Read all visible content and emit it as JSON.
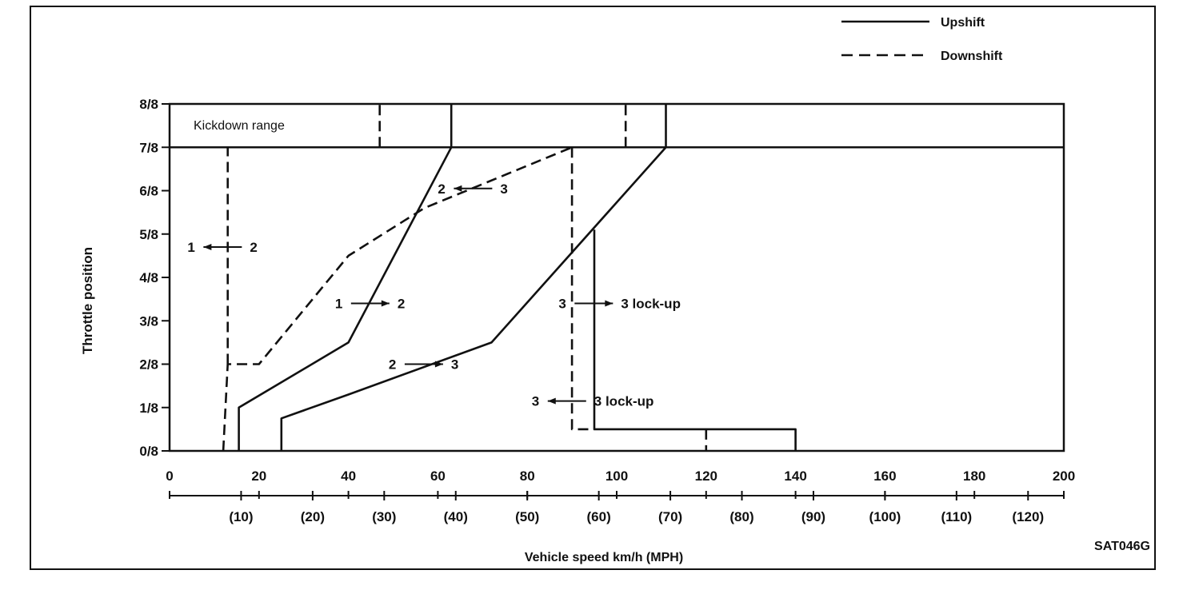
{
  "chart_data": {
    "type": "line",
    "xlabel": "Vehicle speed  km/h (MPH)",
    "ylabel": "Throttle position",
    "code": "SAT046G",
    "xlim": [
      0,
      200
    ],
    "ylim": [
      0,
      8
    ],
    "x_ticks": [
      "0",
      "20",
      "40",
      "60",
      "80",
      "100",
      "120",
      "140",
      "160",
      "180",
      "200"
    ],
    "x_ticks_mph": [
      {
        "value": 16,
        "label": "(10)"
      },
      {
        "value": 32,
        "label": "(20)"
      },
      {
        "value": 48,
        "label": "(30)"
      },
      {
        "value": 64,
        "label": "(40)"
      },
      {
        "value": 80,
        "label": "(50)"
      },
      {
        "value": 96,
        "label": "(60)"
      },
      {
        "value": 112,
        "label": "(70)"
      },
      {
        "value": 128,
        "label": "(80)"
      },
      {
        "value": 144,
        "label": "(90)"
      },
      {
        "value": 160,
        "label": "(100)"
      },
      {
        "value": 176,
        "label": "(110)"
      },
      {
        "value": 192,
        "label": "(120)"
      }
    ],
    "y_ticks": [
      "0/8",
      "1/8",
      "2/8",
      "3/8",
      "4/8",
      "5/8",
      "6/8",
      "7/8",
      "8/8"
    ],
    "legend": [
      {
        "label": "Upshift",
        "style": "solid"
      },
      {
        "label": "Downshift",
        "style": "dashed"
      }
    ],
    "kickdown_label": "Kickdown range",
    "kickdown_band": [
      7,
      8
    ],
    "series": [
      {
        "style": "solid",
        "points": [
          [
            15.5,
            0
          ],
          [
            15.5,
            1
          ],
          [
            40,
            2.5
          ],
          [
            63,
            7
          ],
          [
            63,
            8
          ]
        ]
      },
      {
        "style": "solid",
        "points": [
          [
            25,
            0
          ],
          [
            25,
            0.75
          ],
          [
            40,
            1.3
          ],
          [
            72,
            2.5
          ],
          [
            111,
            7
          ],
          [
            111,
            8
          ]
        ]
      },
      {
        "style": "solid",
        "points": [
          [
            95,
            5.1
          ],
          [
            95,
            0.5
          ],
          [
            140,
            0.5
          ],
          [
            140,
            0
          ]
        ]
      },
      {
        "style": "dashed",
        "points": [
          [
            12,
            0
          ],
          [
            13,
            2
          ],
          [
            20,
            2
          ],
          [
            40,
            4.5
          ],
          [
            57,
            5.6
          ],
          [
            90,
            7
          ]
        ]
      },
      {
        "style": "dashed",
        "points": [
          [
            13,
            2
          ],
          [
            13,
            7
          ]
        ]
      },
      {
        "style": "dashed",
        "points": [
          [
            90,
            7
          ],
          [
            90,
            0.5
          ],
          [
            95,
            0.5
          ]
        ]
      },
      {
        "style": "dashed",
        "points": [
          [
            120,
            0.5
          ],
          [
            120,
            0
          ]
        ]
      },
      {
        "style": "dashed",
        "points": [
          [
            47,
            7
          ],
          [
            47,
            8
          ]
        ]
      },
      {
        "style": "dashed",
        "points": [
          [
            102,
            7
          ],
          [
            102,
            8
          ]
        ]
      }
    ],
    "annotations": [
      {
        "from": "1",
        "to": "2",
        "x": 4,
        "y": 4.7,
        "arrow": "left"
      },
      {
        "from": "1",
        "to": "2",
        "x": 37,
        "y": 3.4,
        "arrow": "right"
      },
      {
        "from": "2",
        "to": "3",
        "x": 60,
        "y": 6.05,
        "arrow": "left"
      },
      {
        "from": "2",
        "to": "3",
        "x": 49,
        "y": 2.0,
        "arrow": "right"
      },
      {
        "from": "3",
        "to": "3 lock-up",
        "x": 87,
        "y": 3.4,
        "arrow": "right"
      },
      {
        "from": "3",
        "to": "3 lock-up",
        "x": 81,
        "y": 1.15,
        "arrow": "left"
      }
    ]
  }
}
